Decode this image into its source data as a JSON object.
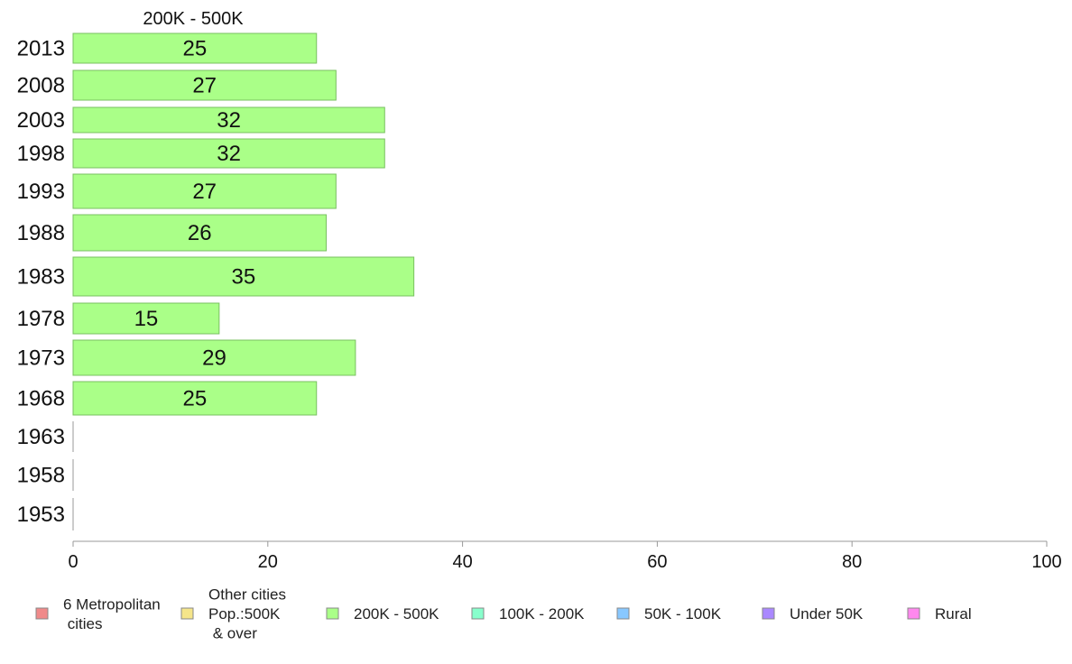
{
  "chart_data": {
    "type": "bar",
    "orientation": "horizontal",
    "title": "200K - 500K",
    "categories": [
      "2013",
      "2008",
      "2003",
      "1998",
      "1993",
      "1988",
      "1983",
      "1978",
      "1973",
      "1968",
      "1963",
      "1958",
      "1953"
    ],
    "series": [
      {
        "name": "200K - 500K",
        "color": "#aaff88",
        "values": [
          25,
          27,
          32,
          32,
          27,
          26,
          35,
          15,
          29,
          25,
          null,
          null,
          null
        ]
      }
    ],
    "data_labels": [
      "25",
      "27",
      "32",
      "32",
      "27",
      "26",
      "35",
      "15",
      "29",
      "25",
      "",
      "",
      ""
    ],
    "xlim": [
      0,
      100
    ],
    "xticks": [
      "0",
      "20",
      "40",
      "60",
      "80",
      "100"
    ],
    "grid": false,
    "legend": {
      "placement": "bottom",
      "items": [
        {
          "label": "6 Metropolitan\n cities",
          "color": "#f08a8a"
        },
        {
          "label": "Other cities\nPop.:500K\n & over",
          "color": "#f5e58a"
        },
        {
          "label": "200K - 500K",
          "color": "#aaff88"
        },
        {
          "label": "100K - 200K",
          "color": "#88ffcc"
        },
        {
          "label": "50K - 100K",
          "color": "#88c8ff"
        },
        {
          "label": "Under 50K",
          "color": "#aa88ff"
        },
        {
          "label": "Rural",
          "color": "#ff88ee"
        }
      ]
    }
  }
}
